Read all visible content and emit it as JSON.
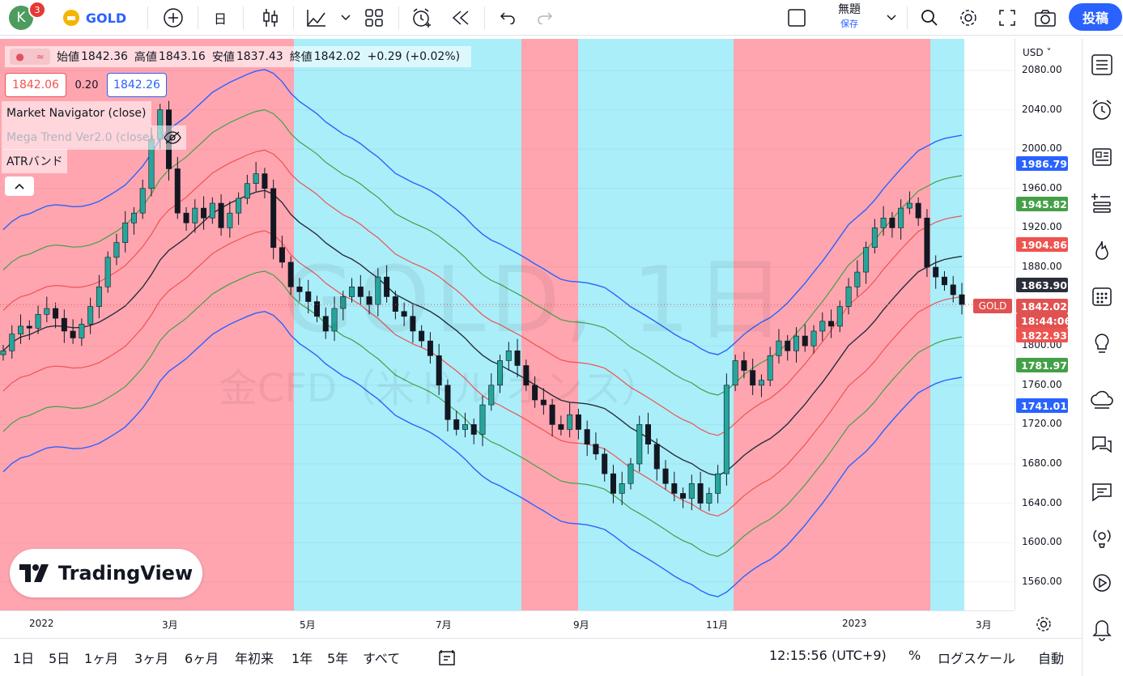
{
  "topbar": {
    "avatar_letter": "K",
    "notif_count": "3",
    "symbol": "GOLD",
    "interval": "日",
    "chart_name": "無題",
    "save_label": "保存",
    "publish_label": "投稿"
  },
  "legend": {
    "open_label": "始値",
    "open": "1842.36",
    "high_label": "高値",
    "high": "1843.16",
    "low_label": "安値",
    "low": "1837.43",
    "close_label": "終値",
    "close": "1842.02",
    "change": "+0.29 (+0.02%)",
    "bid": "1842.06",
    "spread": "0.20",
    "ask": "1842.26",
    "indicators": [
      "Market Navigator (close)",
      "Mega Trend Ver2.0 (close)",
      "ATRバンド"
    ]
  },
  "watermark": {
    "main": "GOLD, 1日",
    "sub": "金CFD（米ドル/オンス）"
  },
  "logo_text": "TradingView",
  "price_axis": {
    "currency": "USD",
    "ticks": [
      "2080.00",
      "2040.00",
      "2000.00",
      "1960.00",
      "1920.00",
      "1880.00",
      "1840.00",
      "1800.00",
      "1760.00",
      "1720.00",
      "1680.00",
      "1640.00",
      "1600.00",
      "1560.00"
    ],
    "tags": [
      {
        "value": "1986.79",
        "color": "#2962ff"
      },
      {
        "value": "1945.82",
        "color": "#43a047"
      },
      {
        "value": "1904.86",
        "color": "#ef5350"
      },
      {
        "value": "1863.90",
        "color": "#2a2e39"
      },
      {
        "value": "1842.02",
        "color": "#e05251"
      },
      {
        "value": "18:44:06",
        "color": "#e05251"
      },
      {
        "value": "1822.93",
        "color": "#ef5350"
      },
      {
        "value": "1781.97",
        "color": "#43a047"
      },
      {
        "value": "1741.01",
        "color": "#2962ff"
      }
    ],
    "symbol_tag": "GOLD"
  },
  "time_axis": [
    "2022",
    "3月",
    "5月",
    "7月",
    "9月",
    "11月",
    "2023",
    "3月"
  ],
  "bottombar": {
    "ranges": [
      "1日",
      "5日",
      "1ヶ月",
      "3ヶ月",
      "6ヶ月",
      "年初来",
      "1年",
      "5年",
      "すべて"
    ],
    "clock": "12:15:56 (UTC+9)",
    "percent": "%",
    "log": "ログスケール",
    "auto": "自動"
  },
  "chart_data": {
    "type": "candlestick",
    "y_range": [
      1540,
      2100
    ],
    "background_regime": [
      {
        "color": "red",
        "from": "2022-01",
        "to": "2022-04-25"
      },
      {
        "color": "cyan",
        "from": "2022-04-25",
        "to": "2022-08-08"
      },
      {
        "color": "red",
        "from": "2022-08-08",
        "to": "2022-09-01"
      },
      {
        "color": "cyan",
        "from": "2022-09-01",
        "to": "2022-11-08"
      },
      {
        "color": "red",
        "from": "2022-11-08",
        "to": "2023-02-03"
      },
      {
        "color": "cyan",
        "from": "2023-02-03",
        "to": "2023-02-24"
      }
    ],
    "close_series": [
      1795,
      1812,
      1820,
      1818,
      1832,
      1838,
      1828,
      1815,
      1808,
      1822,
      1840,
      1860,
      1890,
      1905,
      1925,
      1935,
      1960,
      2010,
      2040,
      1980,
      1935,
      1925,
      1940,
      1930,
      1945,
      1920,
      1935,
      1950,
      1965,
      1975,
      1960,
      1900,
      1885,
      1860,
      1855,
      1845,
      1830,
      1815,
      1838,
      1850,
      1860,
      1850,
      1842,
      1870,
      1850,
      1835,
      1830,
      1815,
      1805,
      1790,
      1760,
      1725,
      1715,
      1720,
      1710,
      1740,
      1760,
      1785,
      1795,
      1780,
      1760,
      1745,
      1740,
      1720,
      1715,
      1730,
      1715,
      1700,
      1690,
      1670,
      1650,
      1660,
      1680,
      1720,
      1700,
      1675,
      1660,
      1650,
      1645,
      1660,
      1640,
      1650,
      1670,
      1760,
      1785,
      1775,
      1760,
      1765,
      1790,
      1805,
      1795,
      1810,
      1800,
      1815,
      1825,
      1820,
      1840,
      1860,
      1875,
      1900,
      1920,
      1930,
      1920,
      1940,
      1945,
      1930,
      1880,
      1870,
      1862,
      1852,
      1842
    ],
    "series": [
      {
        "name": "ATRバンド upper2",
        "color": "#2962ff"
      },
      {
        "name": "ATRバンド upper1",
        "color": "#43a047"
      },
      {
        "name": "ATRバンド inner",
        "color": "#ef5350"
      },
      {
        "name": "Market Navigator",
        "color": "#2a2e39"
      }
    ]
  }
}
